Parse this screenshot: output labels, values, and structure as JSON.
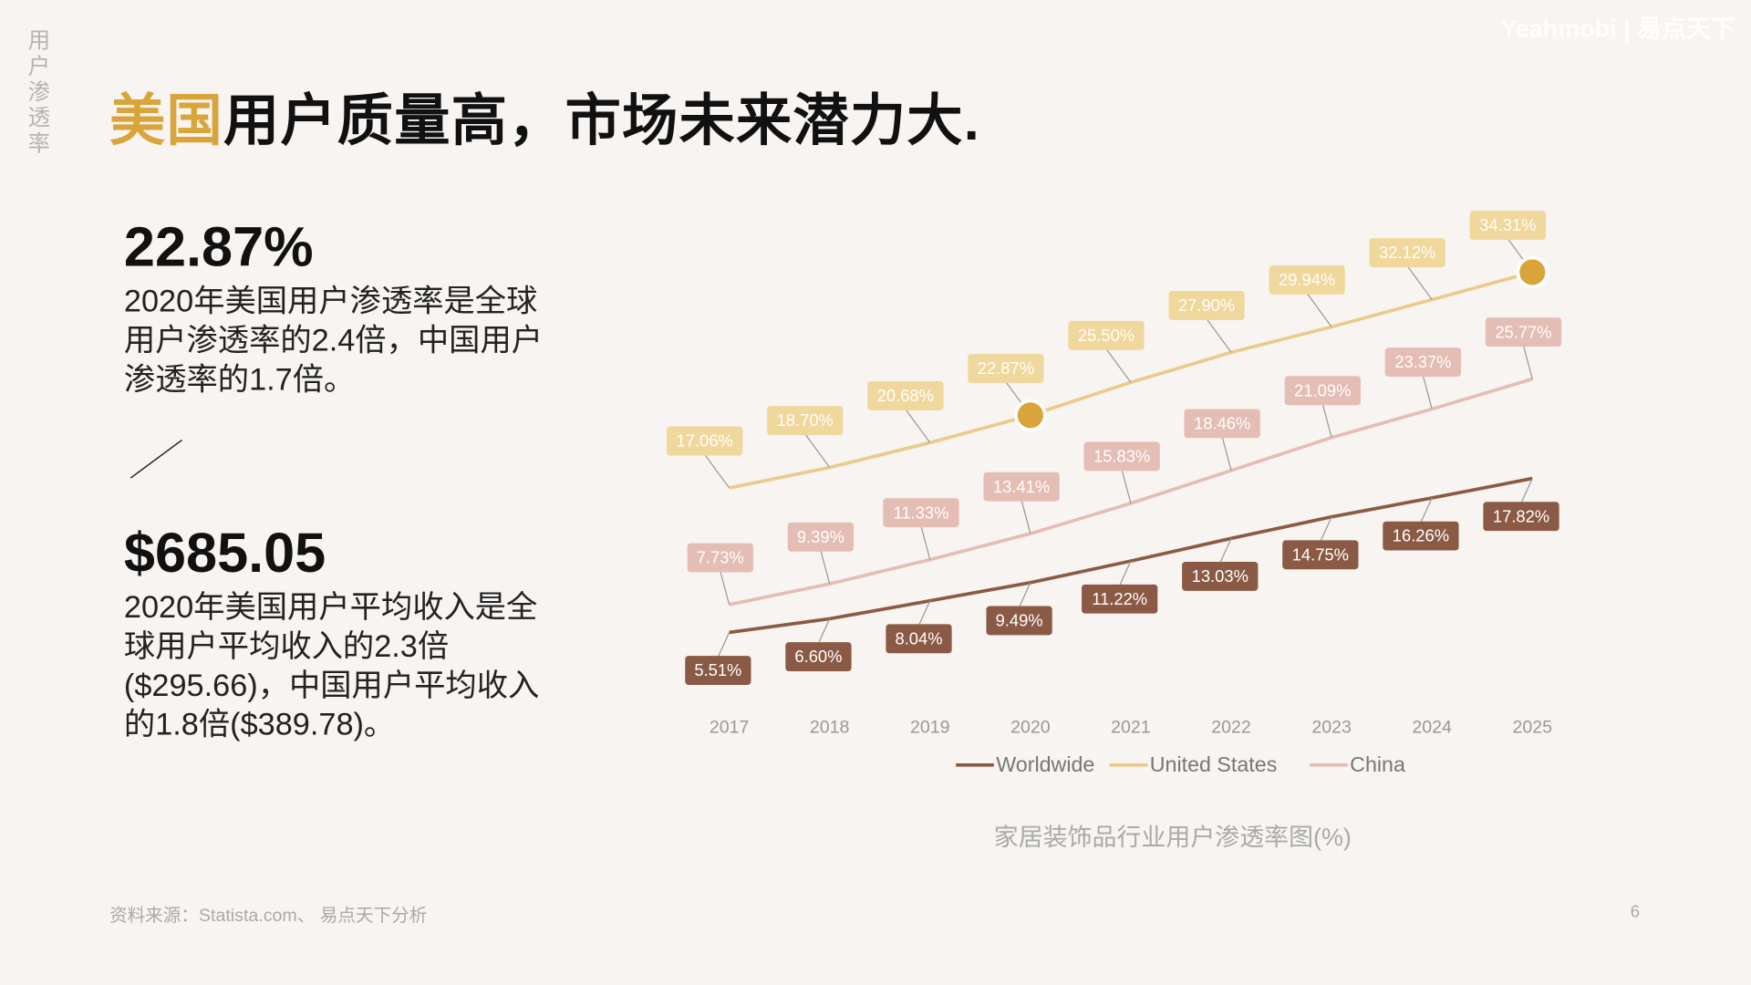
{
  "side_label": "用户渗透率",
  "title": {
    "highlight": "美国",
    "rest": "用户质量高，市场未来潜力大."
  },
  "logo": "Yeahmobi | 易点天下",
  "stat1": {
    "value": "22.87%",
    "text": "2020年美国用户渗透率是全球用户渗透率的2.4倍，中国用户渗透率的1.7倍。"
  },
  "stat2": {
    "value": "$685.05",
    "text": "2020年美国用户平均收入是全球用户平均收入的2.3倍($295.66)，中国用户平均收入的1.8倍($389.78)。"
  },
  "source": "资料来源：Statista.com、 易点天下分析",
  "page_number": "6",
  "chart_data": {
    "type": "line",
    "title": "家居装饰品行业用户渗透率图(%)",
    "categories": [
      "2017",
      "2018",
      "2019",
      "2020",
      "2021",
      "2022",
      "2023",
      "2024",
      "2025"
    ],
    "series": [
      {
        "name": "Worldwide",
        "color": "#8b5a45",
        "values": [
          5.51,
          6.6,
          8.04,
          9.49,
          11.22,
          13.03,
          14.75,
          16.26,
          17.82
        ],
        "labels": [
          "5.51%",
          "6.60%",
          "8.04%",
          "9.49%",
          "11.22%",
          "13.03%",
          "14.75%",
          "16.26%",
          "17.82%"
        ]
      },
      {
        "name": "United States",
        "color": "#ebcb8b",
        "label_bg": "#f0d79c",
        "values": [
          17.06,
          18.7,
          20.68,
          22.87,
          25.5,
          27.9,
          29.94,
          32.12,
          34.31
        ],
        "labels": [
          "17.06%",
          "18.70%",
          "20.68%",
          "22.87%",
          "25.50%",
          "27.90%",
          "29.94%",
          "32.12%",
          "34.31%"
        ],
        "highlight_points": [
          "2020",
          "2025"
        ],
        "highlight_color": "#d9a53a"
      },
      {
        "name": "China",
        "color": "#e4bdb4",
        "values": [
          7.73,
          9.39,
          11.33,
          13.41,
          15.83,
          18.46,
          21.09,
          23.37,
          25.77
        ],
        "labels": [
          "7.73%",
          "9.39%",
          "11.33%",
          "13.41%",
          "15.83%",
          "18.46%",
          "21.09%",
          "23.37%",
          "25.77%"
        ]
      }
    ],
    "legend": "bottom",
    "grid": false
  }
}
